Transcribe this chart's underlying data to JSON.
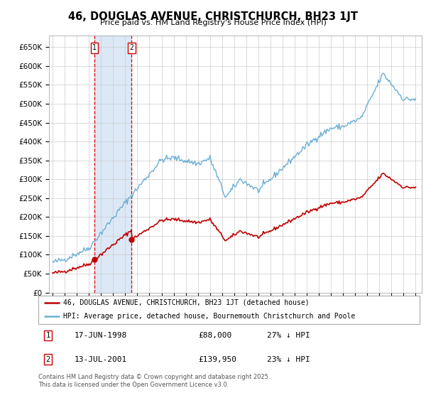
{
  "title": "46, DOUGLAS AVENUE, CHRISTCHURCH, BH23 1JT",
  "subtitle": "Price paid vs. HM Land Registry's House Price Index (HPI)",
  "legend_line1": "46, DOUGLAS AVENUE, CHRISTCHURCH, BH23 1JT (detached house)",
  "legend_line2": "HPI: Average price, detached house, Bournemouth Christchurch and Poole",
  "sale1_date": "17-JUN-1998",
  "sale1_price": "£88,000",
  "sale1_hpi": "27% ↓ HPI",
  "sale1_year": 1998.46,
  "sale1_value": 88000,
  "sale2_date": "13-JUL-2001",
  "sale2_price": "£139,950",
  "sale2_hpi": "23% ↓ HPI",
  "sale2_year": 2001.53,
  "sale2_value": 139950,
  "hpi_color": "#6aaed6",
  "price_color": "#c00000",
  "vline_color": "#e00000",
  "shade_color": "#c6d9f0",
  "background_color": "#ffffff",
  "grid_color": "#cccccc",
  "footer": "Contains HM Land Registry data © Crown copyright and database right 2025.\nThis data is licensed under the Open Government Licence v3.0.",
  "ylim": [
    0,
    680000
  ],
  "yticks": [
    0,
    50000,
    100000,
    150000,
    200000,
    250000,
    300000,
    350000,
    400000,
    450000,
    500000,
    550000,
    600000,
    650000
  ],
  "xlim_start": 1994.7,
  "xlim_end": 2025.5
}
